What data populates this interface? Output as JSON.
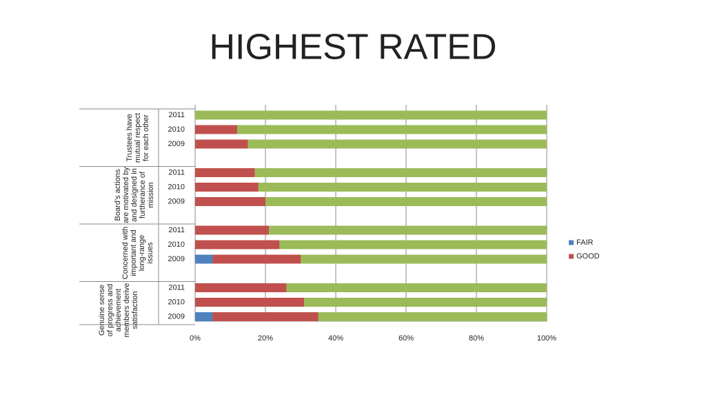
{
  "chart_data": {
    "type": "stacked-bar-horizontal",
    "title": "HIGHEST RATED",
    "groups": [
      "Trustees  have mutual respect for each other",
      "Board’s actions are motivated by and designed in furtherance of mission",
      "Concerned with important and long-range issues",
      "Genuine sense of progress and achievement members derive satisfaction"
    ],
    "categories": [
      "2011",
      "2010",
      "2009",
      "2011",
      "2010",
      "2009",
      "2011",
      "2010",
      "2009",
      "2011",
      "2010",
      "2009"
    ],
    "series": [
      {
        "name": "FAIR",
        "color": "#4f81bd",
        "values": [
          0,
          0,
          0,
          0,
          0,
          0,
          0,
          0,
          5,
          0,
          0,
          5
        ]
      },
      {
        "name": "GOOD",
        "color": "#c0504d",
        "values": [
          0,
          12,
          15,
          17,
          18,
          20,
          21,
          24,
          25,
          26,
          31,
          30
        ]
      },
      {
        "name": null,
        "color": "#9bbb59",
        "values": [
          100,
          88,
          85,
          83,
          82,
          80,
          79,
          76,
          70,
          74,
          69,
          65
        ]
      }
    ],
    "xlim": [
      0,
      100
    ],
    "xticks": [
      {
        "value": 0,
        "label": "0%"
      },
      {
        "value": 20,
        "label": "20%"
      },
      {
        "value": 40,
        "label": "40%"
      },
      {
        "value": 60,
        "label": "60%"
      },
      {
        "value": 80,
        "label": "80%"
      },
      {
        "value": 100,
        "label": "100%"
      }
    ],
    "grid": true,
    "legend": "right"
  }
}
